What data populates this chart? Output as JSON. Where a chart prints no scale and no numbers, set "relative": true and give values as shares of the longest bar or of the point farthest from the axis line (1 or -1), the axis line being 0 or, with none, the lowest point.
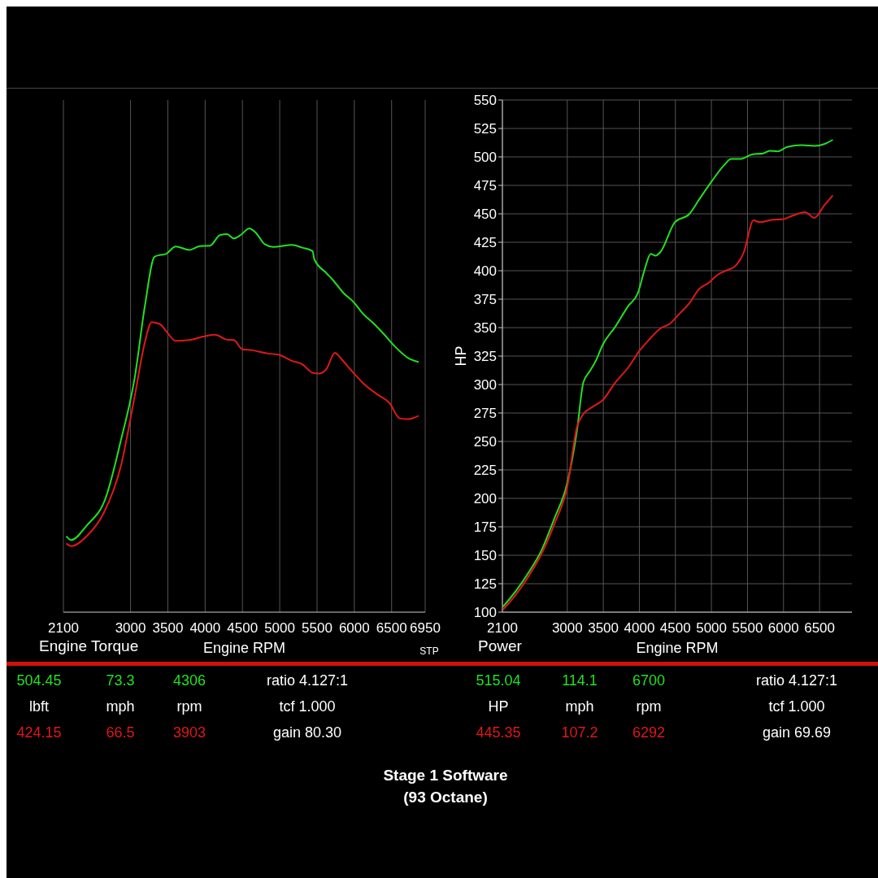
{
  "chart_data": [
    {
      "type": "line",
      "title": "Engine Torque",
      "xlabel": "Engine RPM",
      "relative": true,
      "grid": "x",
      "xlim": [
        2100,
        6950
      ],
      "xticks": [
        2100,
        3000,
        3500,
        4000,
        4500,
        5000,
        5500,
        6000,
        6500,
        6950
      ],
      "series": [
        {
          "color": "#22e022",
          "x": [
            2138,
            2206,
            2413,
            2665,
            2872,
            3055,
            3193,
            3321,
            3399,
            3468,
            3606,
            3789,
            3927,
            4064,
            4202,
            4294,
            4385,
            4477,
            4592,
            4683,
            4798,
            4913,
            5165,
            5303,
            5440,
            5463,
            5624,
            5716,
            5853,
            5991,
            6106,
            6266,
            6404,
            6541,
            6725,
            6862
          ],
          "values": [
            0.198,
            0.188,
            0.226,
            0.297,
            0.449,
            0.61,
            0.799,
            0.926,
            0.931,
            0.933,
            0.953,
            0.944,
            0.954,
            0.955,
            0.983,
            0.985,
            0.974,
            0.983,
            1.0,
            0.988,
            0.959,
            0.952,
            0.957,
            0.95,
            0.941,
            0.92,
            0.884,
            0.865,
            0.832,
            0.808,
            0.78,
            0.751,
            0.723,
            0.693,
            0.662,
            0.652
          ]
        },
        {
          "color": "#e01818",
          "x": [
            2138,
            2206,
            2413,
            2642,
            2872,
            3055,
            3193,
            3284,
            3399,
            3468,
            3606,
            3789,
            3972,
            4133,
            4294,
            4385,
            4500,
            4615,
            4844,
            4982,
            5165,
            5303,
            5440,
            5532,
            5624,
            5739,
            5830,
            5945,
            6128,
            6312,
            6472,
            6610,
            6725,
            6862
          ],
          "values": [
            0.179,
            0.172,
            0.198,
            0.259,
            0.382,
            0.562,
            0.704,
            0.756,
            0.75,
            0.735,
            0.707,
            0.709,
            0.718,
            0.723,
            0.71,
            0.709,
            0.685,
            0.683,
            0.674,
            0.671,
            0.655,
            0.646,
            0.624,
            0.622,
            0.633,
            0.676,
            0.659,
            0.633,
            0.595,
            0.567,
            0.545,
            0.505,
            0.503,
            0.512
          ]
        }
      ],
      "annotations": [
        "504.45",
        "73.3",
        "4306",
        "ratio 4.127:1",
        "lbft",
        "mph",
        "rpm",
        "tcf 1.000",
        "424.15",
        "66.5",
        "3903",
        "gain 80.30",
        "STP"
      ]
    },
    {
      "type": "line",
      "title": "Power",
      "xlabel": "Engine RPM",
      "ylabel": "HP",
      "grid": true,
      "xlim": [
        2100,
        6950
      ],
      "xticks": [
        2100,
        3000,
        3500,
        4000,
        4500,
        5000,
        5500,
        6000,
        6500
      ],
      "ylim": [
        100,
        550
      ],
      "yticks": [
        100,
        125,
        150,
        175,
        200,
        225,
        250,
        275,
        300,
        325,
        350,
        375,
        400,
        425,
        450,
        475,
        500,
        525,
        550
      ],
      "series": [
        {
          "color": "#22e022",
          "x": [
            2109,
            2287,
            2465,
            2644,
            2822,
            3000,
            3134,
            3223,
            3312,
            3401,
            3490,
            3668,
            3846,
            3980,
            4069,
            4158,
            4225,
            4292,
            4492,
            4693,
            4826,
            5005,
            5183,
            5272,
            5406,
            5562,
            5717,
            5807,
            5918,
            6052,
            6252,
            6430,
            6564,
            6684
          ],
          "values": [
            104.9,
            118.7,
            135.0,
            154.6,
            182.5,
            213.5,
            259.4,
            301.9,
            311.7,
            321.5,
            334.6,
            351.0,
            369.0,
            380.4,
            400.1,
            414.8,
            413.2,
            416.4,
            442.6,
            449.8,
            462.2,
            478.6,
            493.3,
            498.2,
            498.2,
            502.2,
            503.1,
            505.4,
            504.8,
            508.7,
            510.3,
            509.7,
            511.3,
            515.0
          ]
        },
        {
          "color": "#e01818",
          "x": [
            2109,
            2287,
            2465,
            2644,
            2822,
            3000,
            3134,
            3223,
            3356,
            3490,
            3668,
            3846,
            4002,
            4136,
            4292,
            4426,
            4559,
            4693,
            4826,
            4960,
            5094,
            5227,
            5317,
            5450,
            5584,
            5673,
            5851,
            5985,
            6118,
            6297,
            6430,
            6564,
            6684
          ],
          "values": [
            102.3,
            115.4,
            131.7,
            151.4,
            177.6,
            210.3,
            262.6,
            274.1,
            280.6,
            286.2,
            301.9,
            315.0,
            329.7,
            339.5,
            349.3,
            353.6,
            362.4,
            371.3,
            383.7,
            389.3,
            396.8,
            400.7,
            403.3,
            416.4,
            444.2,
            442.6,
            444.9,
            445.2,
            448.2,
            451.4,
            446.5,
            457.3,
            466.2
          ]
        }
      ],
      "annotations": [
        "515.04",
        "114.1",
        "6700",
        "ratio 4.127:1",
        "HP",
        "mph",
        "rpm",
        "tcf 1.000",
        "445.35",
        "107.2",
        "6292",
        "gain 69.69",
        "Stage 1 Software",
        "(93 Octane)"
      ]
    }
  ]
}
